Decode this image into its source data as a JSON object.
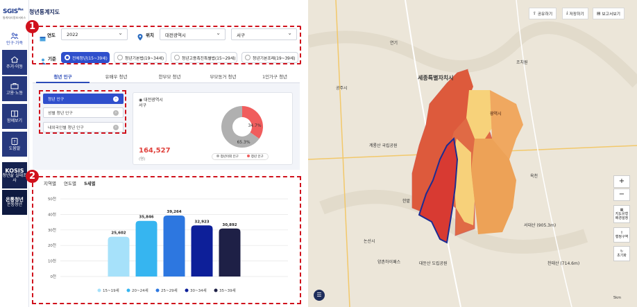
{
  "logo": {
    "name": "SGIS",
    "plus": "Plus",
    "sub": "통계지리정보서비스"
  },
  "app_title": "청년통계지도",
  "nav": [
    {
      "label": "인구·가족",
      "icon": "family-icon"
    },
    {
      "label": "주거·이동",
      "icon": "house-icon"
    },
    {
      "label": "고용·노동",
      "icon": "briefcase-icon"
    },
    {
      "label": "함께보기",
      "icon": "book-icon"
    },
    {
      "label": "도움말",
      "icon": "help-icon"
    }
  ],
  "kosis": {
    "title": "KOSIS",
    "sub": "청년삶 실태조사"
  },
  "youth": {
    "title": "온통청년",
    "sub": "온통청년"
  },
  "filters": {
    "year_label": "연도",
    "year_value": "2022",
    "location_label": "위치",
    "city_value": "대전광역시",
    "district_value": "서구",
    "criteria_label": "기준"
  },
  "criteria_chips": [
    {
      "label": "전체청년(15~39세)",
      "selected": true
    },
    {
      "label": "청년기본법(19~34세)",
      "selected": false
    },
    {
      "label": "청년고용촉진특별법(15~29세)",
      "selected": false
    },
    {
      "label": "청년기본조례(19~39세)",
      "selected": false
    }
  ],
  "tabs": [
    "청년 인구",
    "유배우 청년",
    "한부모 청년",
    "부모동거 청년",
    "1인가구 청년"
  ],
  "sub_buttons": [
    "청년 인구",
    "성별 청년 인구",
    "내외국인별 청년 인구"
  ],
  "summary": {
    "location_line1": "대전광역시",
    "location_line2": "서구",
    "total": "164,527",
    "unit": "(명)",
    "pie_youth_pct": "34.7%",
    "pie_non_youth_pct": "65.3%",
    "legend_non_youth": "청년이외 인구",
    "legend_youth": "청년 인구"
  },
  "pie_data": {
    "youth": 34.7,
    "non_youth": 65.3,
    "colors": {
      "youth": "#f05d5d",
      "non_youth": "#b0b0b0"
    }
  },
  "chart_tabs": [
    "지역별",
    "연도별",
    "5세별"
  ],
  "chart_data": {
    "type": "bar",
    "categories": [
      "15~19세",
      "20~24세",
      "25~29세",
      "30~34세",
      "35~39세"
    ],
    "values": [
      25602,
      35846,
      39264,
      32923,
      30892
    ],
    "value_labels": [
      "25,602",
      "35,846",
      "39,264",
      "32,923",
      "30,892"
    ],
    "colors": [
      "#a6e1fa",
      "#36b5f0",
      "#2d77e0",
      "#0d1f99",
      "#1e2046"
    ],
    "yticks": [
      "50천",
      "40천",
      "30천",
      "20천",
      "10천",
      "0천"
    ],
    "ylim": [
      0,
      50000
    ]
  },
  "badges": [
    "1",
    "2"
  ],
  "map": {
    "buttons": [
      "공유하기",
      "저장하기",
      "보고서보기"
    ],
    "controls": [
      "+",
      "−",
      "지도유형 배경설정",
      "행정구역",
      "초기화"
    ],
    "labels": {
      "sejong": "세종특별자치시",
      "daejeon": "광역시",
      "gyeryongsan": "계룡산 국립공원",
      "nonsan": "논산시",
      "gongju": "공주시",
      "jochiwon": "조치원",
      "seodaesan": "서대산 (905.3m)",
      "cheontaesan": "천태산 (714.6m)",
      "okcheon": "옥천",
      "yeongi": "연기",
      "daedunsan": "대둔산 도립공원",
      "yangchon": "양촌하이패스",
      "hanbat": "한밭",
      "scale": "5km"
    }
  }
}
